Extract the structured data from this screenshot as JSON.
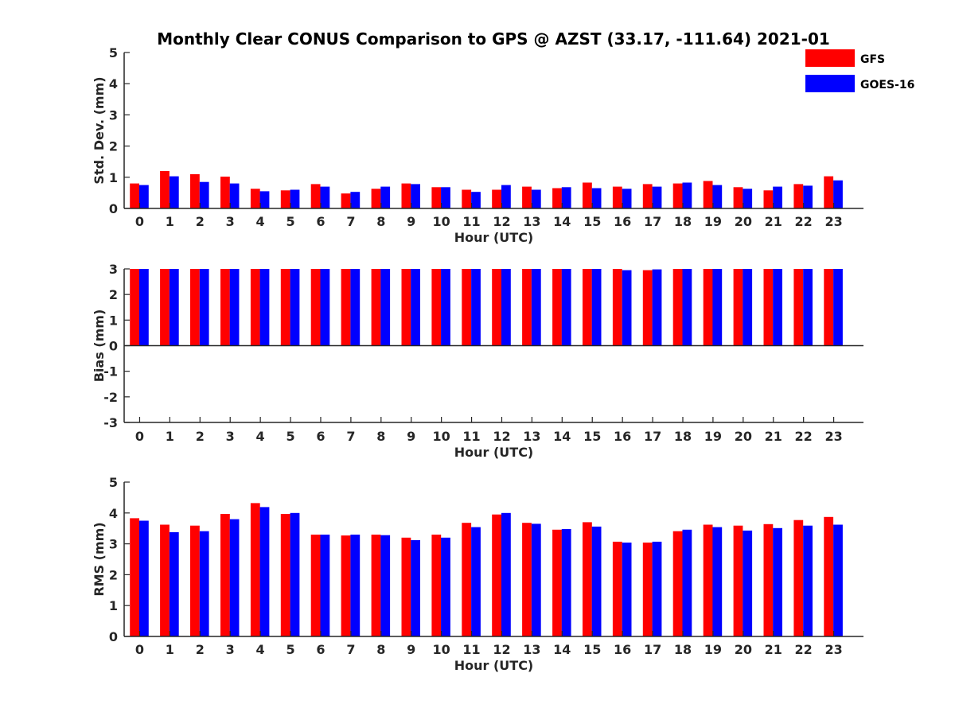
{
  "title": "Monthly Clear CONUS Comparison to GPS @ AZST (33.17, -111.64) 2021-01",
  "legend": [
    {
      "name": "GFS",
      "color": "#ff0000"
    },
    {
      "name": "GOES-16",
      "color": "#0000ff"
    }
  ],
  "chart_data": [
    {
      "type": "bar",
      "categories": [
        "0",
        "1",
        "2",
        "3",
        "4",
        "5",
        "6",
        "7",
        "8",
        "9",
        "10",
        "11",
        "12",
        "13",
        "14",
        "15",
        "16",
        "17",
        "18",
        "19",
        "20",
        "21",
        "22",
        "23"
      ],
      "xlabel": "Hour (UTC)",
      "ylabel": "Std. Dev. (mm)",
      "ylim": [
        0,
        5
      ],
      "yticks": [
        "0",
        "1",
        "2",
        "3",
        "4",
        "5"
      ],
      "grid": false,
      "legend_position": "top-right",
      "series": [
        {
          "name": "GFS",
          "color": "#ff0000",
          "values": [
            0.8,
            1.2,
            1.1,
            1.02,
            0.63,
            0.58,
            0.78,
            0.48,
            0.63,
            0.8,
            0.68,
            0.6,
            0.6,
            0.7,
            0.65,
            0.83,
            0.7,
            0.78,
            0.8,
            0.88,
            0.68,
            0.58,
            0.78,
            1.03
          ]
        },
        {
          "name": "GOES-16",
          "color": "#0000ff",
          "values": [
            0.75,
            1.03,
            0.85,
            0.8,
            0.55,
            0.6,
            0.7,
            0.53,
            0.7,
            0.78,
            0.68,
            0.53,
            0.75,
            0.6,
            0.68,
            0.65,
            0.63,
            0.7,
            0.83,
            0.75,
            0.63,
            0.7,
            0.73,
            0.9
          ]
        }
      ]
    },
    {
      "type": "bar",
      "categories": [
        "0",
        "1",
        "2",
        "3",
        "4",
        "5",
        "6",
        "7",
        "8",
        "9",
        "10",
        "11",
        "12",
        "13",
        "14",
        "15",
        "16",
        "17",
        "18",
        "19",
        "20",
        "21",
        "22",
        "23"
      ],
      "xlabel": "Hour (UTC)",
      "ylabel": "Bias (mm)",
      "ylim": [
        -3,
        3
      ],
      "yticks": [
        "-3",
        "-2",
        "-1",
        "0",
        "1",
        "2",
        "3"
      ],
      "grid": false,
      "series": [
        {
          "name": "GFS",
          "color": "#ff0000",
          "values": [
            3,
            3,
            3,
            3,
            3,
            3,
            3,
            3,
            3,
            3,
            3,
            3,
            3,
            3,
            3,
            3,
            3,
            2.95,
            3,
            3,
            3,
            3,
            3,
            3
          ]
        },
        {
          "name": "GOES-16",
          "color": "#0000ff",
          "values": [
            3,
            3,
            3,
            3,
            3,
            3,
            3,
            3,
            3,
            3,
            3,
            3,
            3,
            3,
            3,
            3,
            2.95,
            2.98,
            3,
            3,
            3,
            3,
            3,
            3
          ]
        }
      ]
    },
    {
      "type": "bar",
      "categories": [
        "0",
        "1",
        "2",
        "3",
        "4",
        "5",
        "6",
        "7",
        "8",
        "9",
        "10",
        "11",
        "12",
        "13",
        "14",
        "15",
        "16",
        "17",
        "18",
        "19",
        "20",
        "21",
        "22",
        "23"
      ],
      "xlabel": "Hour (UTC)",
      "ylabel": "RMS (mm)",
      "ylim": [
        0,
        5
      ],
      "yticks": [
        "0",
        "1",
        "2",
        "3",
        "4",
        "5"
      ],
      "grid": false,
      "series": [
        {
          "name": "GFS",
          "color": "#ff0000",
          "values": [
            3.83,
            3.62,
            3.59,
            3.97,
            4.32,
            3.97,
            3.3,
            3.27,
            3.3,
            3.2,
            3.3,
            3.68,
            3.95,
            3.68,
            3.46,
            3.7,
            3.07,
            3.04,
            3.41,
            3.62,
            3.59,
            3.64,
            3.77,
            3.87
          ]
        },
        {
          "name": "GOES-16",
          "color": "#0000ff",
          "values": [
            3.75,
            3.38,
            3.41,
            3.8,
            4.19,
            4.0,
            3.3,
            3.3,
            3.28,
            3.12,
            3.2,
            3.54,
            4.0,
            3.65,
            3.48,
            3.56,
            3.04,
            3.07,
            3.46,
            3.54,
            3.43,
            3.51,
            3.59,
            3.62
          ]
        }
      ]
    }
  ]
}
